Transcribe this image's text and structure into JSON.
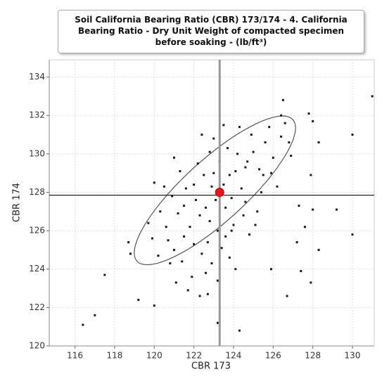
{
  "chart_data": {
    "type": "scatter",
    "title": "Soil California Bearing Ratio (CBR) 173/174 - 4. California Bearing Ratio - Dry Unit Weight of compacted specimen before soaking - (lb/ft³)",
    "x_label": "CBR 173",
    "y_label": "CBR 174",
    "xlim": [
      114.7,
      131.1
    ],
    "xticks": [
      116,
      118,
      120,
      122,
      124,
      126,
      128,
      130
    ],
    "ylim": [
      120,
      134.9
    ],
    "yticks": [
      120,
      122,
      124,
      126,
      128,
      130,
      132,
      134
    ],
    "grid": true,
    "color": "#1a1a1a",
    "x": [
      122.9,
      123.1,
      123.5,
      122.6,
      123.8,
      122.3,
      124.1,
      123.0,
      122.8,
      123.6,
      124.4,
      122.1,
      123.3,
      121.8,
      124.7,
      122.5,
      123.9,
      121.5,
      125.0,
      123.2,
      122.0,
      124.2,
      121.2,
      125.3,
      122.7,
      123.7,
      121.0,
      125.6,
      122.4,
      124.6,
      120.6,
      126.0,
      123.4,
      121.6,
      124.9,
      120.3,
      125.8,
      122.9,
      124.0,
      121.4,
      125.4,
      120.8,
      126.4,
      123.0,
      122.2,
      124.5,
      120.5,
      123.8,
      121.9,
      125.2,
      119.9,
      126.6,
      121.3,
      124.8,
      122.6,
      123.5,
      120.9,
      125.5,
      122.0,
      123.9,
      119.7,
      124.3,
      121.7,
      126.2,
      122.8,
      120.2,
      125.9,
      123.2,
      124.1,
      121.1,
      126.8,
      120.0,
      122.4,
      124.6,
      121.5,
      123.6,
      122.3,
      125.1,
      120.7,
      126.9,
      116.4,
      117.0,
      117.5,
      118.7,
      118.8,
      119.2,
      120.0,
      122.7,
      123.2,
      124.3,
      125.9,
      126.7,
      127.4,
      127.9,
      128.3,
      127.6,
      129.2,
      130.0,
      127.3,
      127.9,
      128.3,
      128.0,
      127.8,
      126.5,
      130.0,
      131.0,
      121.0,
      126.4,
      127.2,
      128.0
    ],
    "values": [
      128.3,
      127.6,
      128.4,
      127.2,
      128.9,
      126.8,
      129.1,
      129.0,
      126.5,
      127.2,
      128.2,
      127.6,
      129.6,
      126.2,
      129.6,
      128.9,
      127.7,
      125.7,
      130.1,
      126.0,
      128.4,
      130.0,
      126.9,
      129.2,
      125.4,
      130.3,
      125.0,
      130.6,
      124.8,
      127.5,
      126.2,
      129.8,
      125.1,
      128.2,
      131.0,
      127.0,
      131.4,
      124.3,
      126.3,
      124.4,
      128.0,
      124.3,
      130.9,
      130.8,
      129.5,
      126.8,
      128.3,
      124.6,
      123.6,
      127.0,
      125.6,
      131.6,
      129.1,
      125.8,
      123.8,
      131.5,
      127.8,
      128.9,
      125.3,
      126.0,
      126.4,
      131.4,
      122.9,
      128.3,
      130.1,
      124.7,
      129.0,
      123.4,
      124.0,
      123.3,
      130.6,
      128.5,
      131.0,
      129.3,
      127.3,
      125.7,
      122.6,
      126.3,
      125.5,
      129.9,
      121.1,
      121.6,
      123.7,
      125.4,
      124.8,
      122.4,
      122.1,
      122.7,
      121.2,
      120.8,
      124.0,
      122.6,
      123.9,
      123.3,
      125.0,
      126.2,
      127.1,
      125.8,
      127.3,
      128.9,
      130.6,
      131.7,
      132.1,
      132.8,
      131.0,
      133.0,
      129.8,
      132.0,
      125.4,
      127.1
    ],
    "reference_lines": {
      "x": 123.3,
      "y": 127.85
    },
    "mean": {
      "x": 123.3,
      "y": 128.0,
      "color": "#e8141b"
    },
    "ellipse": {
      "center": [
        123.06,
        128.1
      ],
      "major_end": [
        126.99,
        131.79
      ],
      "minor_end": [
        124.12,
        126.92
      ]
    }
  }
}
